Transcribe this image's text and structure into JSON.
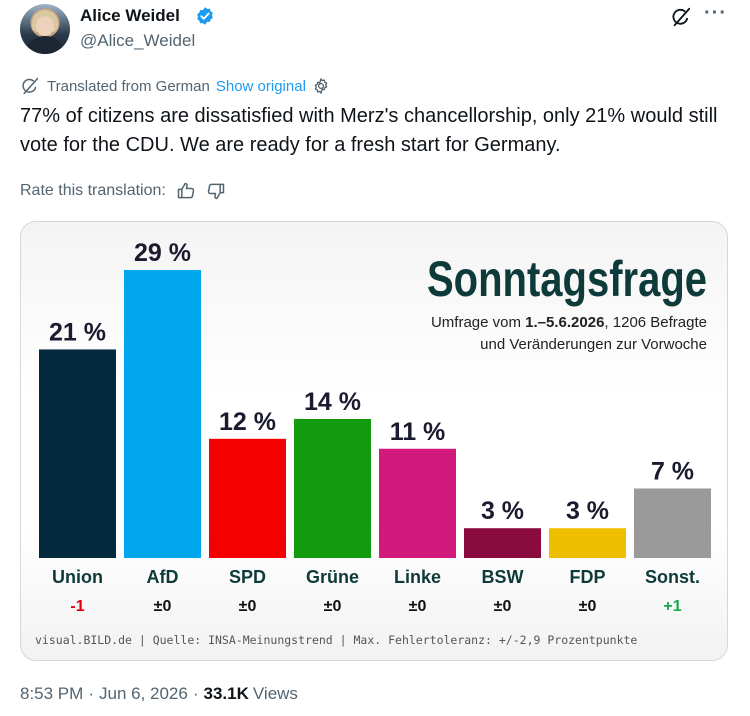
{
  "author": {
    "name": "Alice Weidel",
    "handle": "@Alice_Weidel"
  },
  "translation": {
    "label": "Translated from German",
    "show_original": "Show original"
  },
  "tweet": {
    "text": "77% of citizens are dissatisfied with Merz's chancellorship, only 21% would still vote for the CDU. We are ready for a fresh start for Germany."
  },
  "rate": {
    "label": "Rate this translation:"
  },
  "chart_data": {
    "type": "bar",
    "title": "Sonntagsfrage",
    "subtitle_prefix": "Umfrage vom ",
    "subtitle_bold": "1.–5.6.2026",
    "subtitle_suffix": ", 1206 Befragte",
    "subtitle_line2": "und Veränderungen zur Vorwoche",
    "categories": [
      "Union",
      "AfD",
      "SPD",
      "Grüne",
      "Linke",
      "BSW",
      "FDP",
      "Sonst."
    ],
    "values": [
      21,
      29,
      12,
      14,
      11,
      3,
      3,
      7
    ],
    "value_labels": [
      "21 %",
      "29 %",
      "12 %",
      "14 %",
      "11 %",
      "3 %",
      "3 %",
      "7 %"
    ],
    "changes": [
      "-1",
      "±0",
      "±0",
      "±0",
      "±0",
      "±0",
      "±0",
      "+1"
    ],
    "bar_colors": [
      "#04283c",
      "#00a7ec",
      "#f50000",
      "#139b10",
      "#d11a7c",
      "#8a0c3e",
      "#f0be00",
      "#9a9a9a"
    ],
    "change_colors": [
      "#e3000f",
      "#111111",
      "#111111",
      "#111111",
      "#111111",
      "#111111",
      "#111111",
      "#1aa64a"
    ],
    "source": "visual.BILD.de | Quelle: INSA-Meinungstrend | Max. Fehlertoleranz: +/-2,9 Prozentpunkte",
    "ylim": [
      0,
      29
    ]
  },
  "footer": {
    "time": "8:53 PM",
    "date": "Jun 6, 2026",
    "views_count": "33.1K",
    "views_label": "Views"
  }
}
